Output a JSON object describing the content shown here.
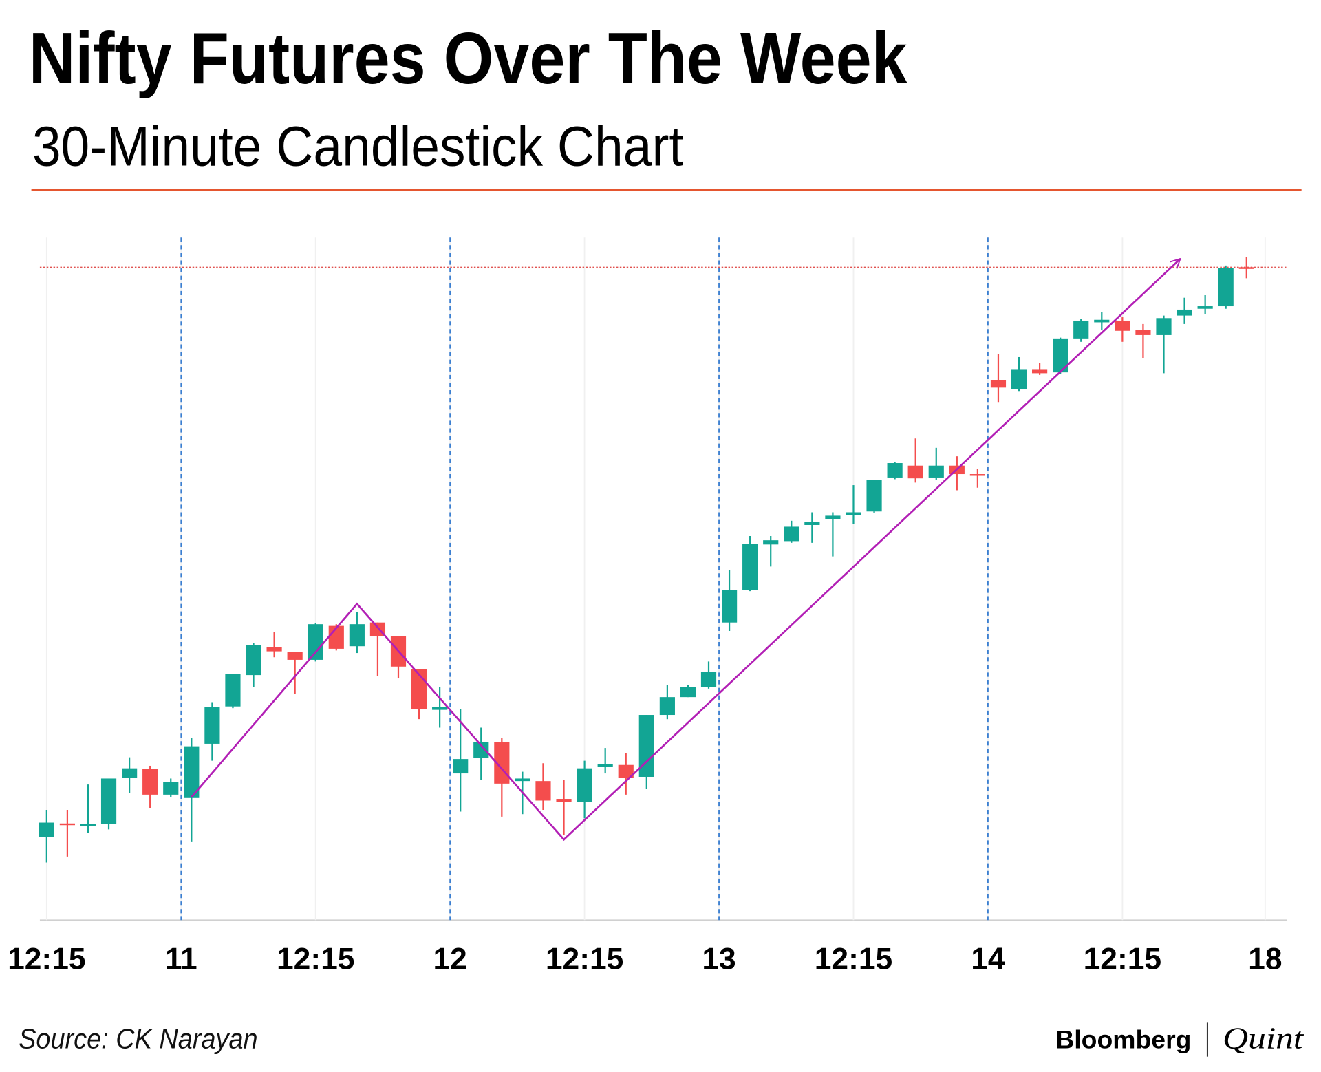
{
  "chart_data": {
    "type": "candlestick",
    "title": "Nifty Futures Over The Week",
    "subtitle": "30-Minute Candlestick Chart",
    "source": "Source: CK Narayan",
    "logo": [
      "Bloomberg",
      "Quint"
    ],
    "x": [
      0,
      1,
      2,
      3,
      4,
      5,
      6,
      7,
      8,
      9,
      10,
      11,
      12,
      13,
      14,
      15,
      16,
      17,
      18,
      19,
      20,
      21,
      22,
      23,
      24,
      25,
      26,
      27,
      28,
      29,
      30,
      31,
      32,
      33,
      34,
      35,
      36,
      37,
      38,
      39,
      40,
      41,
      42,
      43,
      44,
      45,
      46,
      47,
      48,
      49,
      50,
      51,
      52,
      53,
      54,
      55,
      56,
      57,
      58
    ],
    "open": [
      98,
      114,
      111,
      113,
      168,
      178,
      148,
      144,
      208,
      252,
      289,
      322,
      316,
      307,
      347,
      323,
      351,
      335,
      296,
      248,
      173,
      191,
      210,
      164,
      164,
      143,
      139,
      181,
      183,
      169,
      242,
      263,
      275,
      351,
      389,
      443,
      447,
      466,
      473,
      478,
      482,
      522,
      536,
      522,
      536,
      526,
      637,
      626,
      649,
      646,
      686,
      705,
      707,
      696,
      690,
      713,
      721,
      724,
      770
    ],
    "high": [
      130,
      130,
      160,
      167,
      192,
      182,
      167,
      215,
      257,
      290,
      327,
      340,
      316,
      350,
      349,
      363,
      351,
      335,
      296,
      275,
      249,
      227,
      215,
      175,
      185,
      165,
      188,
      203,
      197,
      242,
      277,
      277,
      305,
      413,
      453,
      453,
      471,
      481,
      481,
      513,
      519,
      540,
      568,
      557,
      547,
      532,
      668,
      664,
      657,
      687,
      709,
      717,
      711,
      703,
      713,
      734,
      737,
      772,
      782
    ],
    "low": [
      68,
      75,
      103,
      107,
      150,
      132,
      145,
      92,
      188,
      250,
      275,
      310,
      267,
      305,
      318,
      315,
      288,
      285,
      237,
      227,
      128,
      165,
      122,
      125,
      130,
      100,
      120,
      173,
      148,
      155,
      237,
      263,
      273,
      341,
      388,
      417,
      445,
      445,
      429,
      467,
      480,
      520,
      516,
      519,
      507,
      510,
      611,
      624,
      643,
      644,
      682,
      696,
      682,
      663,
      645,
      703,
      715,
      721,
      757
    ],
    "close": [
      115,
      112,
      113,
      167,
      179,
      148,
      163,
      205,
      251,
      290,
      324,
      317,
      307,
      349,
      320,
      349,
      335,
      299,
      249,
      251,
      190,
      210,
      161,
      167,
      141,
      139,
      179,
      184,
      168,
      242,
      263,
      275,
      293,
      389,
      444,
      448,
      464,
      470,
      477,
      481,
      519,
      539,
      521,
      536,
      526,
      524,
      628,
      649,
      645,
      686,
      707,
      708,
      695,
      690,
      710,
      720,
      724,
      769,
      768
    ],
    "up_color": "#12a594",
    "down_color": "#f44d4d",
    "xlim": [
      -0.33,
      59.96
    ],
    "ylim": [
      0,
      805
    ],
    "xticks": [
      {
        "value": 0,
        "label": "12:15"
      },
      {
        "value": 6.5,
        "label": "11"
      },
      {
        "value": 13,
        "label": "12:15"
      },
      {
        "value": 19.5,
        "label": "12"
      },
      {
        "value": 26,
        "label": "12:15"
      },
      {
        "value": 32.5,
        "label": "13"
      },
      {
        "value": 39,
        "label": "12:15"
      },
      {
        "value": 45.5,
        "label": "14"
      },
      {
        "value": 52,
        "label": "12:15"
      },
      {
        "value": 58.9,
        "label": "18"
      }
    ],
    "grid": true,
    "day_lines": [
      6.5,
      19.5,
      32.5,
      45.5
    ],
    "reference_line": 770,
    "trend_line": {
      "x": [
        7,
        15,
        25,
        54.8
      ],
      "y": [
        145,
        373,
        95,
        780
      ],
      "color": "#b21fb5"
    }
  }
}
